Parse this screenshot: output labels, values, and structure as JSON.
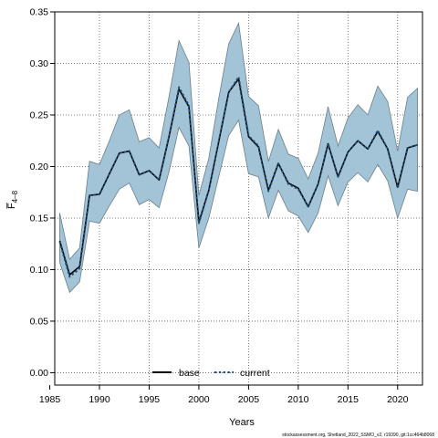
{
  "chart_data": {
    "type": "line",
    "xlabel": "Years",
    "ylabel": "F̅",
    "ylabel_sub": "4–8",
    "xlim": [
      1985.5,
      2022.5
    ],
    "ylim": [
      -0.012,
      0.35
    ],
    "x_ticks": [
      1985,
      1990,
      1995,
      2000,
      2005,
      2010,
      2015,
      2020
    ],
    "y_ticks": [
      0.0,
      0.05,
      0.1,
      0.15,
      0.2,
      0.25,
      0.3,
      0.35
    ],
    "y_tick_labels": [
      "0.00",
      "0.05",
      "0.10",
      "0.15",
      "0.20",
      "0.25",
      "0.30",
      "0.35"
    ],
    "grid": true,
    "legend_position": "bottom-center",
    "colors": {
      "band_fill": "#a3c4d6",
      "band_edge": "#6a7f8c",
      "current_line": "#1f4e79",
      "base_line": "#000000"
    },
    "x": [
      1986,
      1987,
      1988,
      1989,
      1990,
      1991,
      1992,
      1993,
      1994,
      1995,
      1996,
      1997,
      1998,
      1999,
      2000,
      2001,
      2002,
      2003,
      2004,
      2005,
      2006,
      2007,
      2008,
      2009,
      2010,
      2011,
      2012,
      2013,
      2014,
      2015,
      2016,
      2017,
      2018,
      2019,
      2020,
      2021,
      2022
    ],
    "series": [
      {
        "name": "base",
        "style": "solid",
        "values": [
          0.128,
          0.095,
          0.103,
          0.172,
          0.173,
          0.193,
          0.213,
          0.215,
          0.192,
          0.196,
          0.187,
          0.229,
          0.275,
          0.258,
          0.146,
          0.177,
          0.224,
          0.272,
          0.285,
          0.229,
          0.219,
          0.177,
          0.203,
          0.184,
          0.179,
          0.161,
          0.183,
          0.222,
          0.19,
          0.214,
          0.225,
          0.217,
          0.234,
          0.217,
          0.18,
          0.218,
          0.221
        ]
      },
      {
        "name": "current",
        "style": "dotted",
        "values": [
          0.127,
          0.093,
          0.101,
          0.172,
          0.173,
          0.193,
          0.213,
          0.215,
          0.192,
          0.196,
          0.187,
          0.229,
          0.277,
          0.259,
          0.145,
          0.177,
          0.224,
          0.272,
          0.287,
          0.23,
          0.22,
          0.176,
          0.203,
          0.183,
          0.178,
          0.161,
          0.183,
          0.222,
          0.19,
          0.214,
          0.225,
          0.217,
          0.235,
          0.217,
          0.179,
          0.218,
          0.221
        ]
      }
    ],
    "confidence_band": {
      "lower": [
        0.107,
        0.078,
        0.088,
        0.147,
        0.145,
        0.162,
        0.178,
        0.184,
        0.163,
        0.168,
        0.16,
        0.195,
        0.238,
        0.22,
        0.121,
        0.15,
        0.19,
        0.23,
        0.245,
        0.193,
        0.19,
        0.15,
        0.177,
        0.157,
        0.152,
        0.136,
        0.155,
        0.191,
        0.162,
        0.185,
        0.194,
        0.185,
        0.202,
        0.186,
        0.15,
        0.178,
        0.176
      ],
      "upper": [
        0.155,
        0.11,
        0.121,
        0.205,
        0.202,
        0.225,
        0.25,
        0.255,
        0.224,
        0.228,
        0.218,
        0.268,
        0.322,
        0.301,
        0.172,
        0.208,
        0.266,
        0.319,
        0.339,
        0.268,
        0.259,
        0.205,
        0.236,
        0.212,
        0.208,
        0.188,
        0.213,
        0.258,
        0.22,
        0.247,
        0.26,
        0.25,
        0.278,
        0.263,
        0.215,
        0.267,
        0.276
      ]
    }
  },
  "footer_text": "stockassessment.org, Shetland_2022_SSMO_v2, r19390, git:1cc464b8068"
}
